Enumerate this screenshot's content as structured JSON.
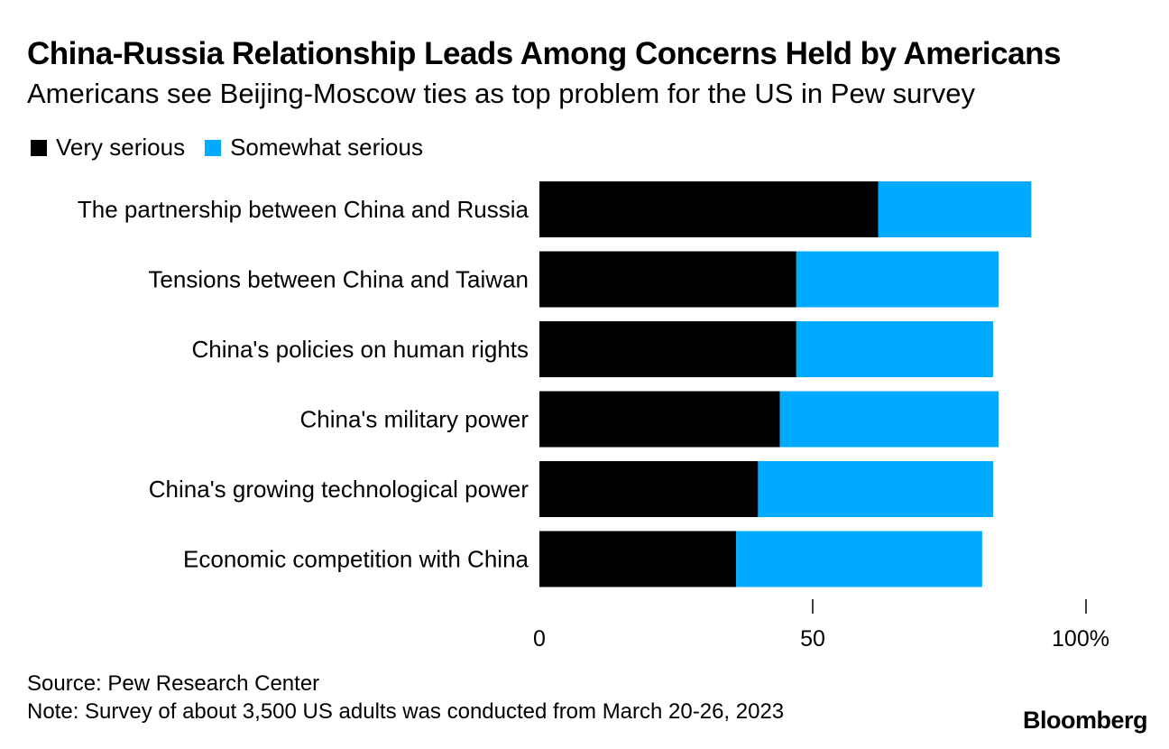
{
  "title": "China-Russia Relationship Leads Among Concerns Held by Americans",
  "subtitle": "Americans see Beijing-Moscow ties as top problem for the US in Pew survey",
  "legend": {
    "very": "Very serious",
    "somewhat": "Somewhat serious"
  },
  "colors": {
    "very": "#000000",
    "somewhat": "#00aaff"
  },
  "chart_data": {
    "type": "bar",
    "orientation": "horizontal",
    "stacked": true,
    "categories": [
      "The partnership between China and Russia",
      "Tensions between China and Taiwan",
      "China's policies on human rights",
      "China's military power",
      "China's growing technological power",
      "Economic competition with China"
    ],
    "series": [
      {
        "name": "Very serious",
        "values": [
          62,
          47,
          47,
          44,
          40,
          36
        ]
      },
      {
        "name": "Somewhat serious",
        "values": [
          28,
          37,
          36,
          40,
          43,
          45
        ]
      }
    ],
    "xlim": [
      0,
      100
    ],
    "xticks": [
      0,
      50,
      100
    ],
    "xtick_labels": [
      "0",
      "50",
      "100%"
    ],
    "title": "China-Russia Relationship Leads Among Concerns Held by Americans",
    "legend_position": "top-left"
  },
  "footer": {
    "source": "Source: Pew Research Center",
    "note": "Note: Survey of about 3,500 US adults was conducted from March 20-26, 2023",
    "brand": "Bloomberg"
  }
}
